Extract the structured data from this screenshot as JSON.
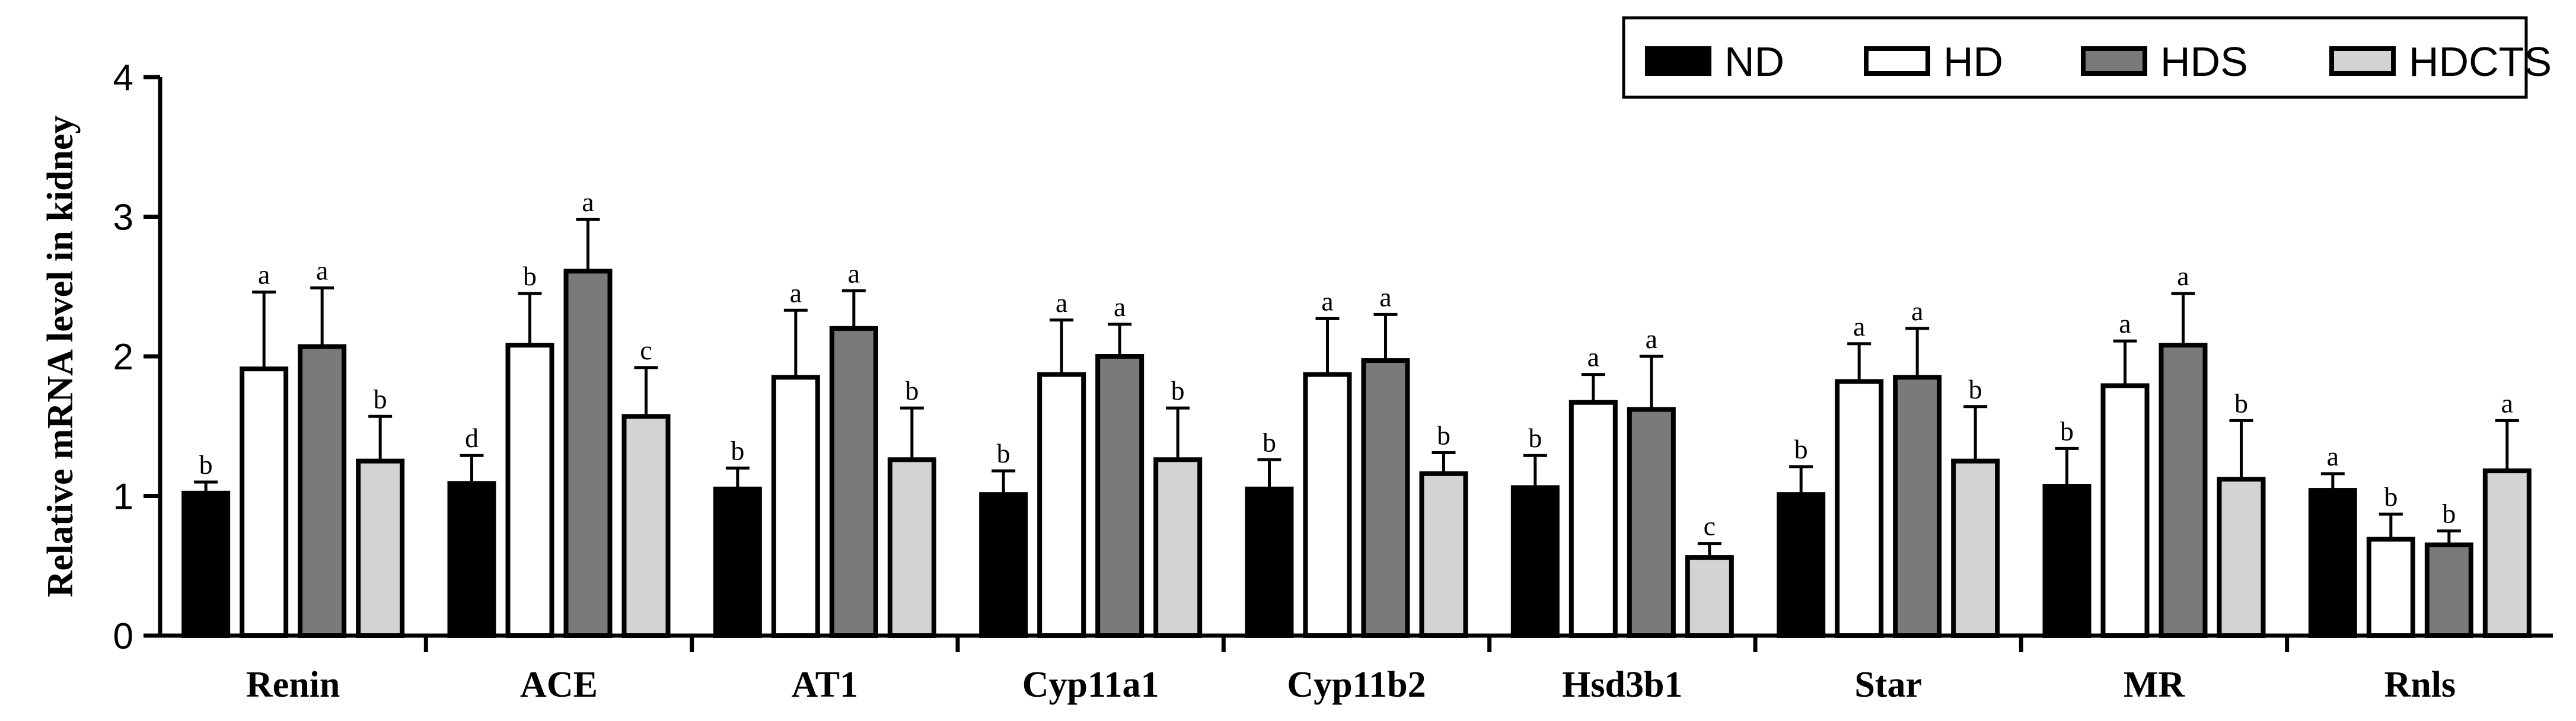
{
  "chart_data": {
    "type": "bar",
    "title": "",
    "xlabel": "",
    "ylabel": "Relative mRNA level in kidney",
    "ylim": [
      0,
      4
    ],
    "yticks": [
      0,
      1,
      2,
      3,
      4
    ],
    "legend_position": "top-right",
    "categories": [
      "Renin",
      "ACE",
      "AT1",
      "Cyp11a1",
      "Cyp11b2",
      "Hsd3b1",
      "Star",
      "MR",
      "Rnls"
    ],
    "series": [
      {
        "name": "ND",
        "color": "#000000",
        "values": [
          1.02,
          1.09,
          1.05,
          1.01,
          1.05,
          1.06,
          1.01,
          1.07,
          1.04
        ],
        "errors": [
          0.08,
          0.2,
          0.15,
          0.17,
          0.21,
          0.23,
          0.2,
          0.27,
          0.12
        ],
        "sig": [
          "b",
          "d",
          "b",
          "b",
          "b",
          "b",
          "b",
          "b",
          "a"
        ]
      },
      {
        "name": "HD",
        "color": "#ffffff",
        "values": [
          1.91,
          2.08,
          1.85,
          1.87,
          1.87,
          1.67,
          1.82,
          1.79,
          0.69
        ],
        "errors": [
          0.55,
          0.37,
          0.48,
          0.39,
          0.4,
          0.2,
          0.27,
          0.32,
          0.18
        ],
        "sig": [
          "a",
          "b",
          "a",
          "a",
          "a",
          "a",
          "a",
          "a",
          "b"
        ]
      },
      {
        "name": "HDS",
        "color": "#7a7a7a",
        "values": [
          2.07,
          2.61,
          2.2,
          2.0,
          1.97,
          1.62,
          1.85,
          2.08,
          0.65
        ],
        "errors": [
          0.42,
          0.37,
          0.27,
          0.23,
          0.33,
          0.38,
          0.35,
          0.37,
          0.1
        ],
        "sig": [
          "a",
          "a",
          "a",
          "a",
          "a",
          "a",
          "a",
          "a",
          "b"
        ]
      },
      {
        "name": "HDCTS",
        "color": "#d3d3d3",
        "values": [
          1.25,
          1.57,
          1.26,
          1.26,
          1.16,
          0.56,
          1.25,
          1.12,
          1.18
        ],
        "errors": [
          0.32,
          0.35,
          0.37,
          0.37,
          0.15,
          0.1,
          0.39,
          0.42,
          0.36
        ],
        "sig": [
          "b",
          "c",
          "b",
          "b",
          "b",
          "c",
          "b",
          "b",
          "a"
        ]
      }
    ]
  }
}
